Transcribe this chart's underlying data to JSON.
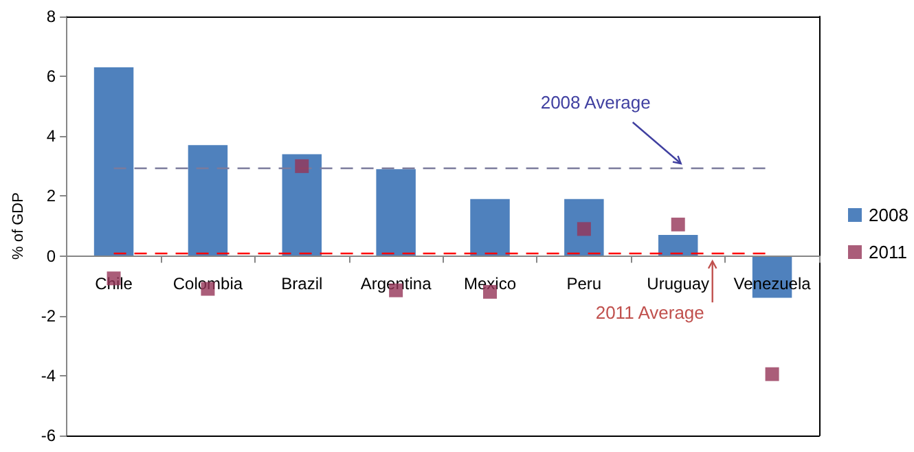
{
  "chart_data": {
    "type": "bar",
    "categories": [
      "Chile",
      "Colombia",
      "Brazil",
      "Argentina",
      "Mexico",
      "Peru",
      "Uruguay",
      "Venezuela"
    ],
    "ylabel": "% of GDP",
    "series": [
      {
        "name": "2008",
        "color": "#4f81bd",
        "values": [
          6.3,
          3.7,
          3.4,
          2.9,
          1.9,
          1.9,
          0.7,
          -1.4
        ]
      },
      {
        "name": "2011",
        "type": "scatter",
        "marker": "square",
        "color": "#953557",
        "values": [
          -0.75,
          -1.1,
          3.0,
          -1.15,
          -1.2,
          0.9,
          1.05,
          -3.95
        ]
      }
    ],
    "ref_lines": [
      {
        "axis": "y",
        "value": 2.95,
        "label": "2008 Average",
        "color": "#7b7b9c",
        "line_style": "dashed"
      },
      {
        "axis": "y",
        "value": 0.1,
        "label": "2011 Average",
        "color": "#ff0000",
        "line_style": "dashed"
      }
    ],
    "ylim": [
      -6,
      8
    ],
    "yticks": [
      -6,
      -4,
      -2,
      0,
      2,
      4,
      6,
      8
    ],
    "grid": false,
    "legend": "right"
  }
}
